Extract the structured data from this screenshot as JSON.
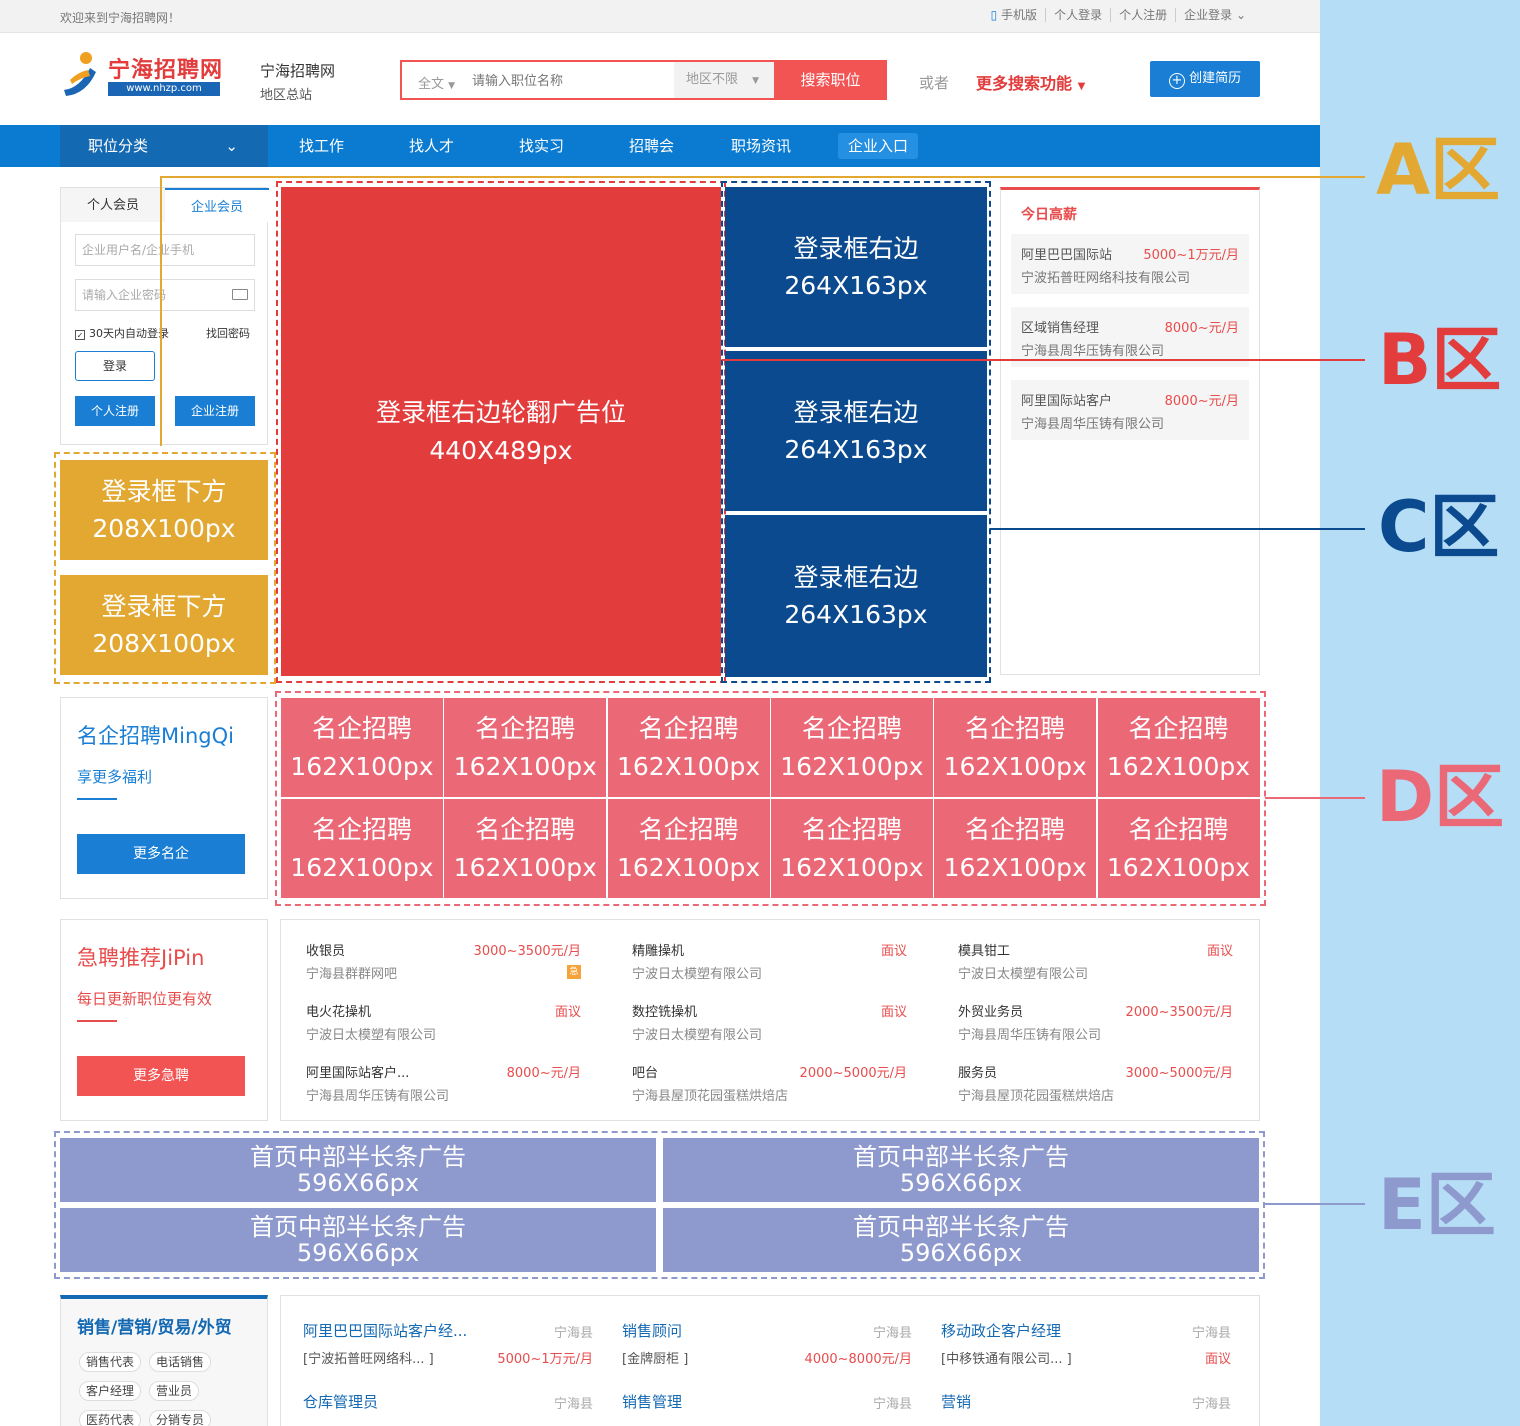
{
  "topbar": {
    "welcome": "欢迎来到宁海招聘网！",
    "links": [
      "手机版",
      "个人登录",
      "个人注册",
      "企业登录"
    ]
  },
  "header": {
    "logo_name": "宁海招聘网",
    "logo_url": "www.nhzp.com",
    "site_name": "宁海招聘网",
    "site_sub": "地区总站",
    "search_scope": "全文",
    "search_placeholder": "请输入职位名称",
    "search_area": "地区不限",
    "search_button": "搜索职位",
    "or_text": "或者",
    "more_search": "更多搜索功能",
    "create_resume": "创建简历"
  },
  "nav": {
    "category": "职位分类",
    "items": [
      "找工作",
      "找人才",
      "找实习",
      "招聘会",
      "职场资讯",
      "企业入口"
    ]
  },
  "login": {
    "tab_personal": "个人会员",
    "tab_company": "企业会员",
    "user_placeholder": "企业用户名/企业手机",
    "pass_placeholder": "请输入企业密码",
    "remember": "30天内自动登录",
    "forgot": "找回密码",
    "login_button": "登录",
    "reg_personal": "个人注册",
    "reg_company": "企业注册"
  },
  "ads": {
    "a_title": "登录框下方",
    "a_size": "208X100px",
    "b_title": "登录框右边轮翻广告位",
    "b_size": "440X489px",
    "c_title": "登录框右边",
    "c_size": "264X163px",
    "d_title": "名企招聘",
    "d_size": "162X100px",
    "e_title": "首页中部半长条广告",
    "e_size": "596X66px"
  },
  "high_pay": {
    "title": "今日高薪",
    "items": [
      {
        "job": "阿里巴巴国际站",
        "salary": "5000~1万元/月",
        "company": "宁波拓普旺网络科技有限公司"
      },
      {
        "job": "区域销售经理",
        "salary": "8000~元/月",
        "company": "宁海县周华压铸有限公司"
      },
      {
        "job": "阿里国际站客户",
        "salary": "8000~元/月",
        "company": "宁海县周华压铸有限公司"
      }
    ]
  },
  "mingqi": {
    "title": "名企招聘MingQi",
    "subtitle": "享更多福利",
    "button": "更多名企"
  },
  "jipin": {
    "title": "急聘推荐JiPin",
    "subtitle": "每日更新职位更有效",
    "button": "更多急聘",
    "badge": "急",
    "items": [
      {
        "job": "收银员",
        "salary": "3000~3500元/月",
        "company": "宁海县群群网吧"
      },
      {
        "job": "精雕操机",
        "salary": "面议",
        "company": "宁波日太模塑有限公司"
      },
      {
        "job": "模具钳工",
        "salary": "面议",
        "company": "宁波日太模塑有限公司"
      },
      {
        "job": "电火花操机",
        "salary": "面议",
        "company": "宁波日太模塑有限公司"
      },
      {
        "job": "数控铣操机",
        "salary": "面议",
        "company": "宁波日太模塑有限公司"
      },
      {
        "job": "外贸业务员",
        "salary": "2000~3500元/月",
        "company": "宁海县周华压铸有限公司"
      },
      {
        "job": "阿里国际站客户...",
        "salary": "8000~元/月",
        "company": "宁海县周华压铸有限公司"
      },
      {
        "job": "吧台",
        "salary": "2000~5000元/月",
        "company": "宁海县屋顶花园蛋糕烘焙店"
      },
      {
        "job": "服务员",
        "salary": "3000~5000元/月",
        "company": "宁海县屋顶花园蛋糕烘焙店"
      }
    ]
  },
  "category": {
    "title": "销售/营销/贸易/外贸",
    "tags": [
      "销售代表",
      "电话销售",
      "客户经理",
      "营业员",
      "医药代表",
      "分销专员"
    ],
    "jobs": [
      {
        "job": "阿里巴巴国际站客户经...",
        "loc": "宁海县",
        "company": "[宁波拓普旺网络科... ]",
        "salary": "5000~1万元/月"
      },
      {
        "job": "销售顾问",
        "loc": "宁海县",
        "company": "[金牌厨柜 ]",
        "salary": "4000~8000元/月"
      },
      {
        "job": "移动政企客户经理",
        "loc": "宁海县",
        "company": "[中移铁通有限公司... ]",
        "salary": "面议"
      },
      {
        "job": "仓库管理员",
        "loc": "宁海县",
        "company": "",
        "salary": ""
      },
      {
        "job": "销售管理",
        "loc": "宁海县",
        "company": "",
        "salary": ""
      },
      {
        "job": "营销",
        "loc": "宁海县",
        "company": "",
        "salary": ""
      }
    ]
  },
  "zones": {
    "a": "A区",
    "b": "B区",
    "c": "C区",
    "d": "D区",
    "e": "E区"
  },
  "colors": {
    "zone_a": "#e2a831",
    "zone_b": "#e23c3c",
    "zone_c": "#0b4a8e",
    "zone_d": "#eb6877",
    "zone_e": "#8e99cd"
  }
}
